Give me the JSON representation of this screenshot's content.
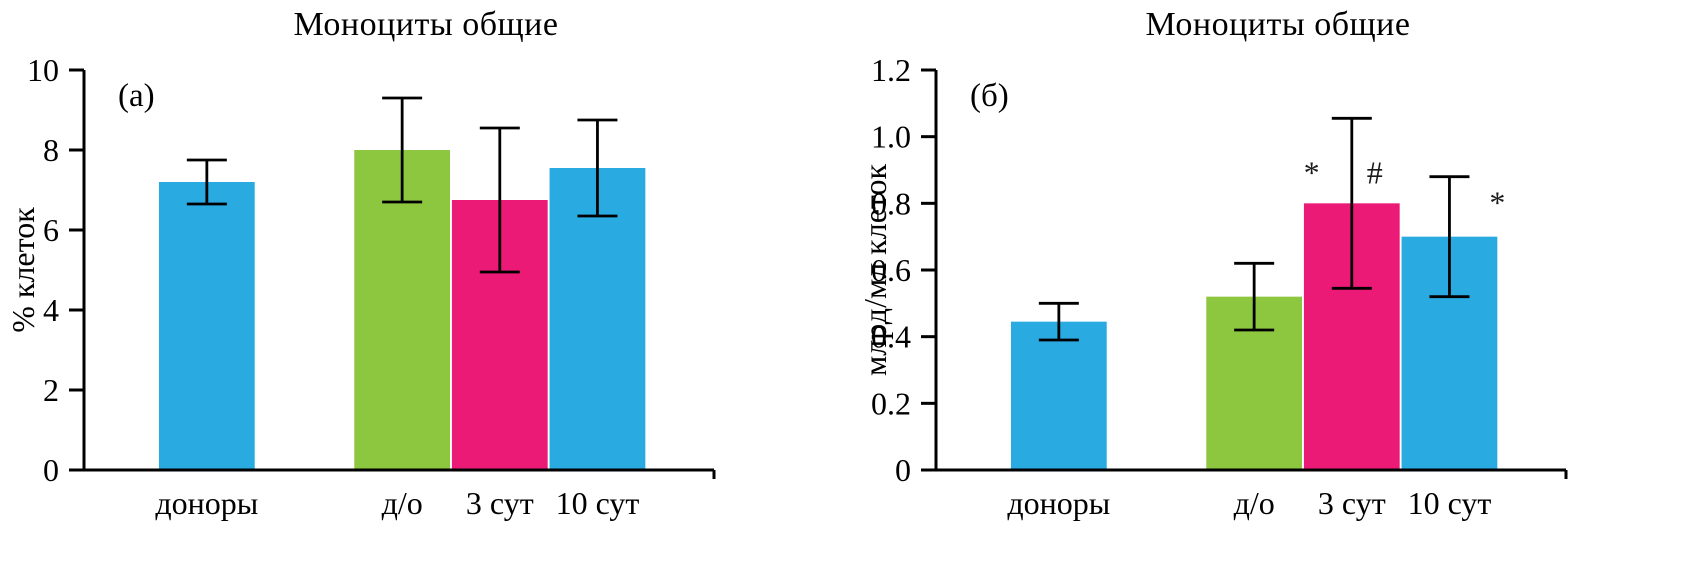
{
  "figure": {
    "background": "#ffffff",
    "axis_color": "#000000",
    "error_bar_color": "#000000"
  },
  "chart_data": [
    {
      "type": "bar",
      "panel_label": "(а)",
      "title": "Моноциты общие",
      "xlabel": "",
      "ylabel": "% клеток",
      "ylim": [
        0,
        10
      ],
      "yticks": [
        0,
        2,
        4,
        6,
        8,
        10
      ],
      "ytick_labels": [
        "0",
        "2",
        "4",
        "6",
        "8",
        "10"
      ],
      "categories": [
        "доноры",
        "д/о",
        "3 сут",
        "10 сут"
      ],
      "values": [
        7.2,
        8.0,
        6.75,
        7.55
      ],
      "errors": [
        0.55,
        1.3,
        1.8,
        1.2
      ],
      "bar_colors": [
        "#29abe2",
        "#8dc63f",
        "#ec1a77",
        "#29abe2"
      ],
      "grid": false,
      "legend": "none",
      "annotations": []
    },
    {
      "type": "bar",
      "panel_label": "(б)",
      "title": "Моноциты общие",
      "xlabel": "",
      "ylabel": "млрд/мл клеток",
      "ylim": [
        0,
        1.2
      ],
      "yticks": [
        0,
        0.2,
        0.4,
        0.6,
        0.8,
        1.0,
        1.2
      ],
      "ytick_labels": [
        "0",
        "0.2",
        "0.4",
        "0.6",
        "0.8",
        "1.0",
        "1.2"
      ],
      "categories": [
        "доноры",
        "д/о",
        "3 сут",
        "10 сут"
      ],
      "values": [
        0.445,
        0.52,
        0.8,
        0.7
      ],
      "errors": [
        0.055,
        0.1,
        0.255,
        0.18
      ],
      "bar_colors": [
        "#29abe2",
        "#8dc63f",
        "#ec1a77",
        "#29abe2"
      ],
      "grid": false,
      "legend": "none",
      "annotations": [
        {
          "text": "*",
          "bar": 2,
          "dx": -0.42,
          "y": 0.86
        },
        {
          "text": "#",
          "bar": 2,
          "dx": 0.24,
          "y": 0.86
        },
        {
          "text": "*",
          "bar": 3,
          "dx": 0.5,
          "y": 0.77
        }
      ]
    }
  ]
}
